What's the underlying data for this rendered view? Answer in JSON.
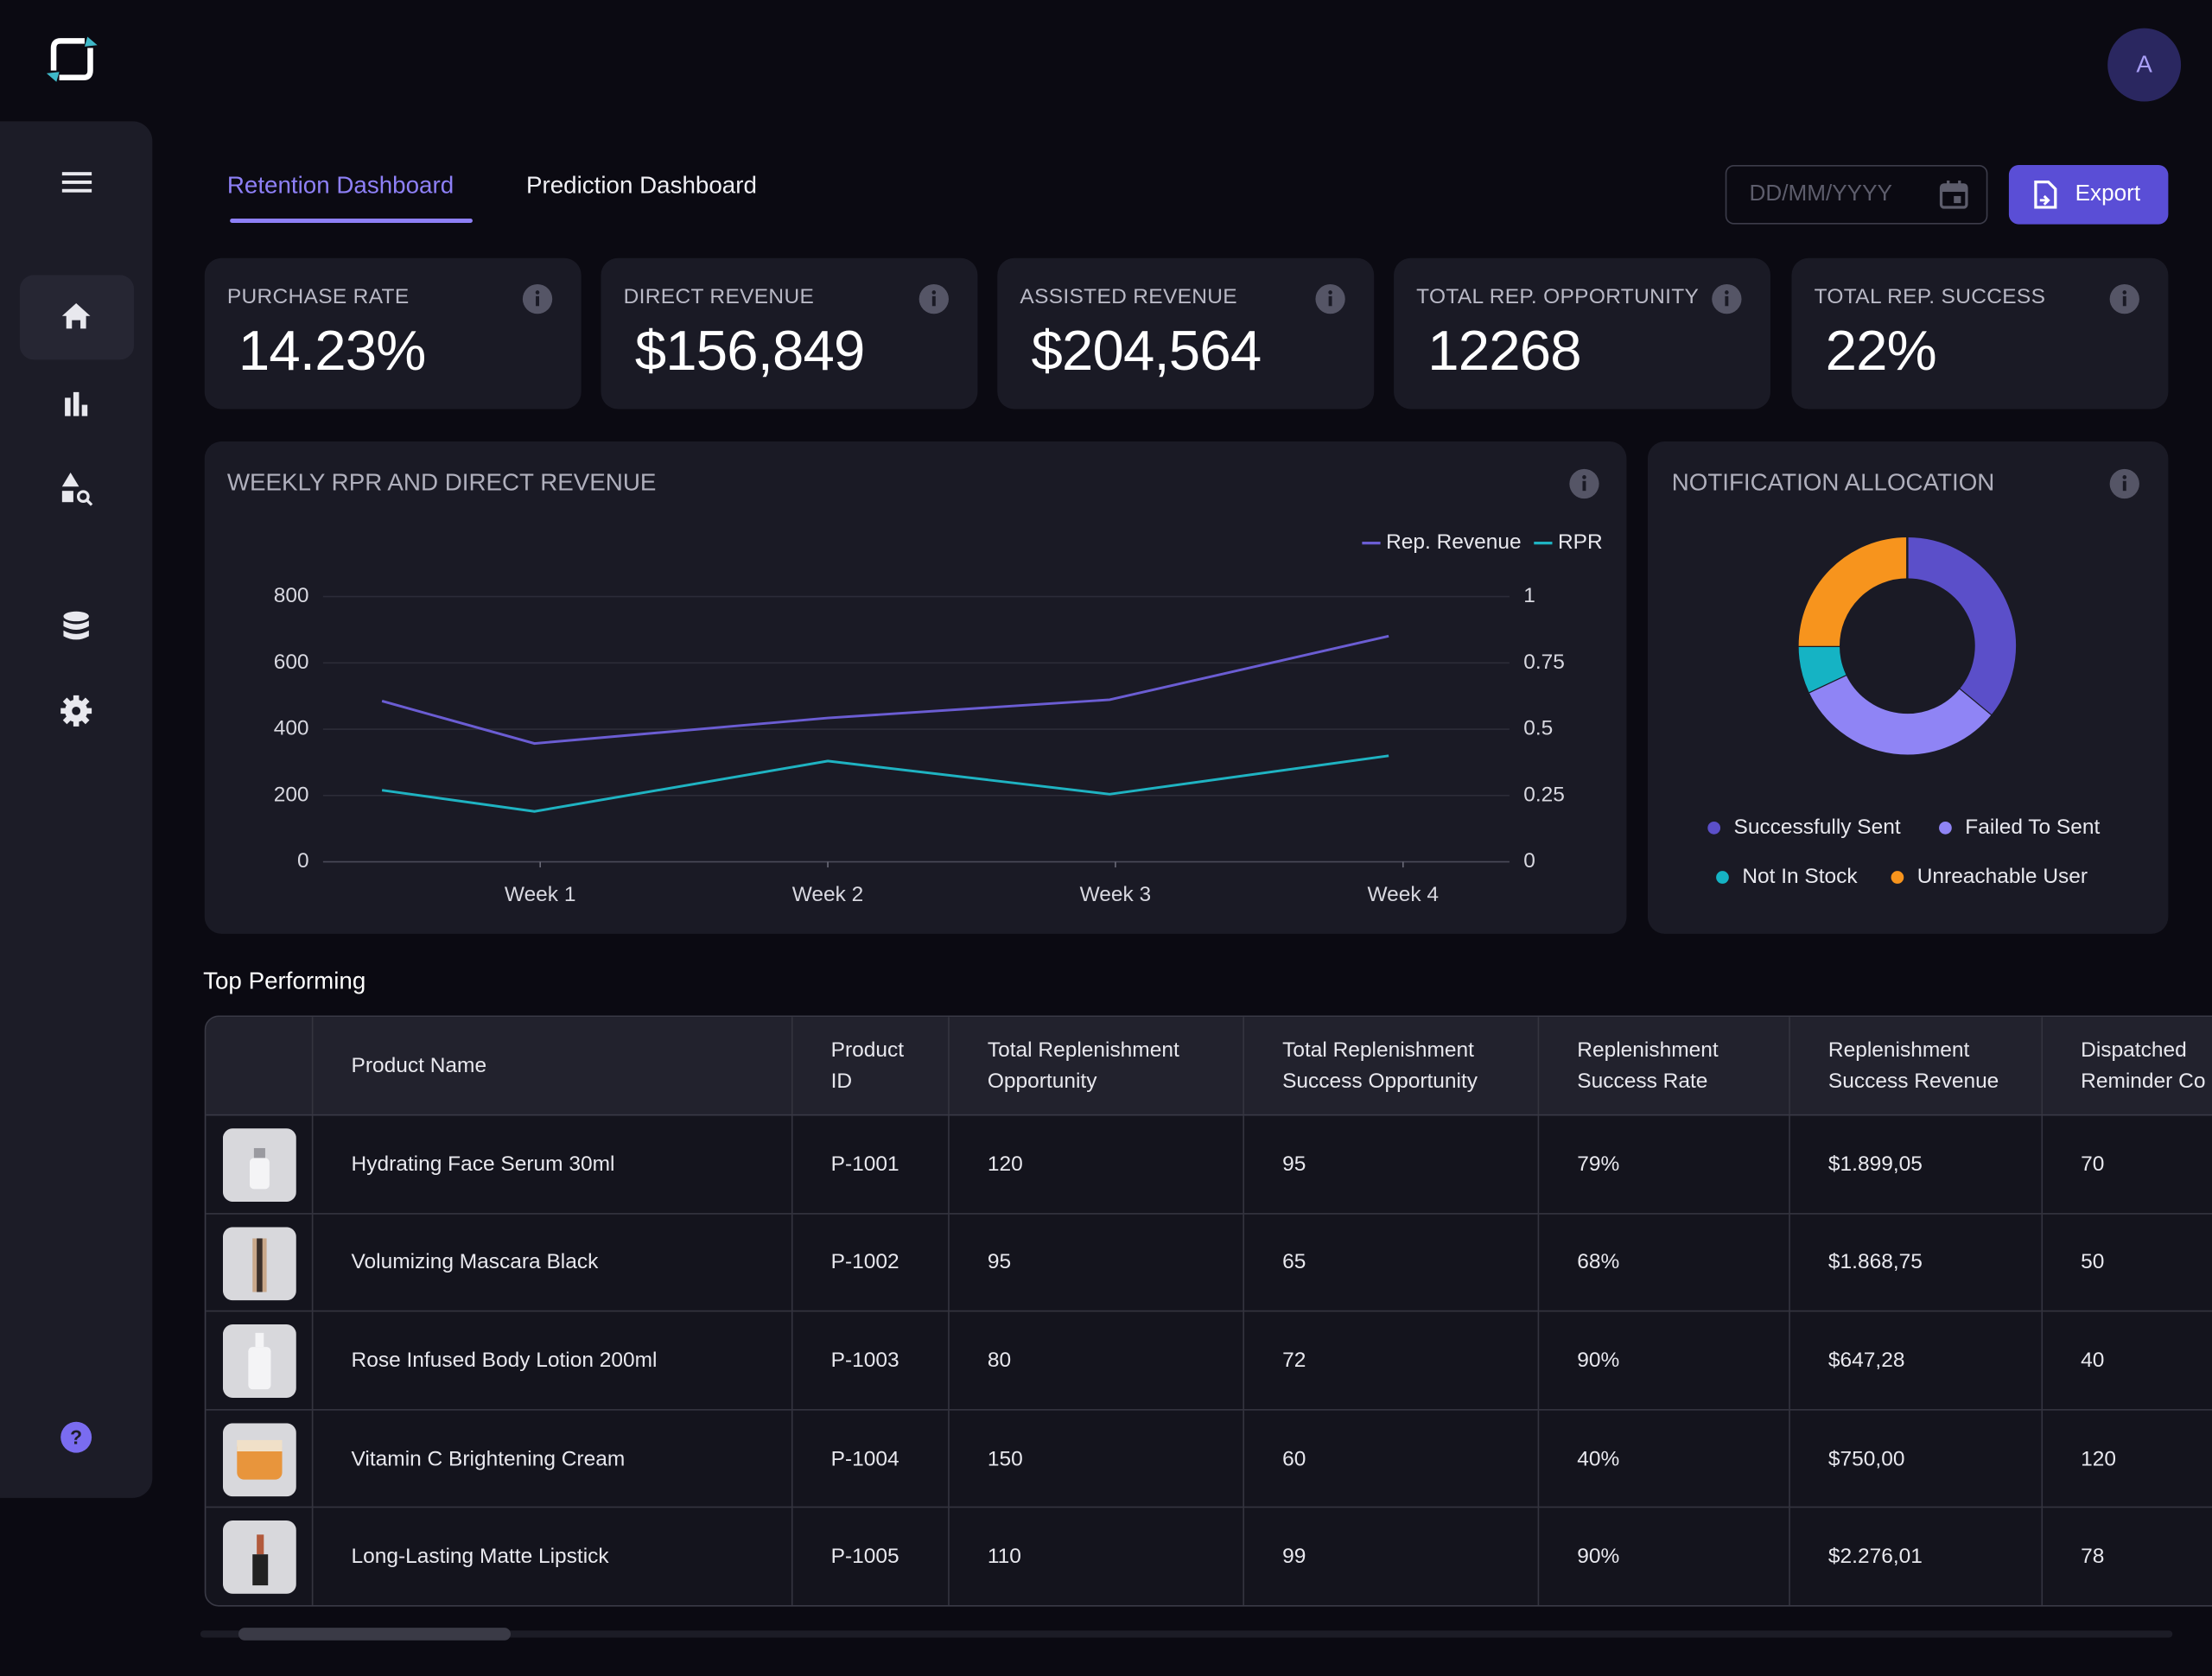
{
  "header": {
    "avatar": "A"
  },
  "tabs": [
    {
      "label": "Retention Dashboard",
      "active": true
    },
    {
      "label": "Prediction Dashboard",
      "active": false
    }
  ],
  "date_placeholder": "DD/MM/YYYY",
  "export_label": "Export",
  "kpis": [
    {
      "label": "PURCHASE RATE",
      "value": "14.23%"
    },
    {
      "label": "DIRECT REVENUE",
      "value": "$156,849"
    },
    {
      "label": "ASSISTED REVENUE",
      "value": "$204,564"
    },
    {
      "label": "TOTAL REP. OPPORTUNITY",
      "value": "12268"
    },
    {
      "label": "TOTAL REP. SUCCESS",
      "value": "22%"
    }
  ],
  "chart_data": [
    {
      "type": "line",
      "title": "WEEKLY RPR AND DIRECT REVENUE",
      "x": [
        0.45,
        0.98,
        2,
        2.98,
        3.95
      ],
      "xlim": [
        0.245,
        4.37
      ],
      "xticks": [
        {
          "value": 1,
          "label": "Week 1"
        },
        {
          "value": 2,
          "label": "Week 2"
        },
        {
          "value": 3,
          "label": "Week 3"
        },
        {
          "value": 4,
          "label": "Week 4"
        }
      ],
      "ylim": [
        0,
        800
      ],
      "yticks": [
        0,
        200,
        400,
        600,
        800
      ],
      "y2lim": [
        0,
        1
      ],
      "y2ticks": [
        0,
        0.25,
        0.5,
        0.75,
        1
      ],
      "grid": true,
      "legend": "top-right",
      "series": [
        {
          "name": "Rep. Revenue",
          "color": "#6b5dd3",
          "values": [
            485,
            357,
            434,
            489,
            681
          ]
        },
        {
          "name": "RPR",
          "color": "#1fb3c2",
          "axis": "y2",
          "values": [
            0.27,
            0.19,
            0.38,
            0.255,
            0.4
          ]
        }
      ]
    },
    {
      "type": "pie",
      "title": "NOTIFICATION ALLOCATION",
      "donut": true,
      "categories": [
        "Successfully Sent",
        "Failed To Sent",
        "Not In Stock",
        "Unreachable User"
      ],
      "values": [
        36,
        32,
        7,
        25
      ],
      "colors": [
        "#5b4fc9",
        "#8f84f5",
        "#15b3c4",
        "#f7941d"
      ]
    }
  ],
  "section_title": "Top Performing",
  "table": {
    "columns": [
      "Product Name",
      "Product ID",
      "Total Replenishment Opportunity",
      "Total Replenishment Success Opportunity",
      "Replenishment Success Rate",
      "Replenishment Success Revenue",
      "Dispatched Reminder Co"
    ],
    "rows": [
      [
        "Hydrating Face Serum 30ml",
        "P-1001",
        "120",
        "95",
        "79%",
        "$1.899,05",
        "70"
      ],
      [
        "Volumizing Mascara Black",
        "P-1002",
        "95",
        "65",
        "68%",
        "$1.868,75",
        "50"
      ],
      [
        "Rose Infused Body Lotion 200ml",
        "P-1003",
        "80",
        "72",
        "90%",
        "$647,28",
        "40"
      ],
      [
        "Vitamin C Brightening Cream",
        "P-1004",
        "150",
        "60",
        "40%",
        "$750,00",
        "120"
      ],
      [
        "Long-Lasting Matte Lipstick",
        "P-1005",
        "110",
        "99",
        "90%",
        "$2.276,01",
        "78"
      ]
    ]
  },
  "sidebar": {
    "help": "?"
  }
}
